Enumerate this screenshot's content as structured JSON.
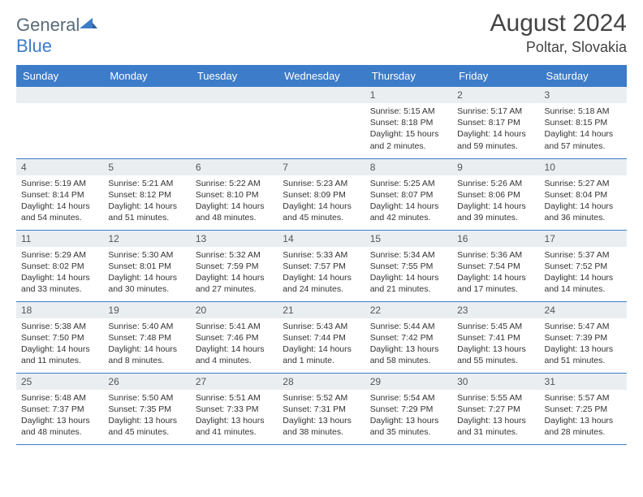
{
  "logo": {
    "left": "General",
    "right": "Blue"
  },
  "title": "August 2024",
  "location": "Poltar, Slovakia",
  "colors": {
    "header_bg": "#3d7cc9",
    "header_fg": "#ffffff",
    "daynum_bg": "#ebeef1",
    "border": "#3d7cc9",
    "logo_gray": "#5a6b7a",
    "logo_blue": "#3d7cc9"
  },
  "weekdays": [
    "Sunday",
    "Monday",
    "Tuesday",
    "Wednesday",
    "Thursday",
    "Friday",
    "Saturday"
  ],
  "weeks": [
    [
      null,
      null,
      null,
      null,
      {
        "day": "1",
        "sunrise": "5:15 AM",
        "sunset": "8:18 PM",
        "daylight": "15 hours and 2 minutes."
      },
      {
        "day": "2",
        "sunrise": "5:17 AM",
        "sunset": "8:17 PM",
        "daylight": "14 hours and 59 minutes."
      },
      {
        "day": "3",
        "sunrise": "5:18 AM",
        "sunset": "8:15 PM",
        "daylight": "14 hours and 57 minutes."
      }
    ],
    [
      {
        "day": "4",
        "sunrise": "5:19 AM",
        "sunset": "8:14 PM",
        "daylight": "14 hours and 54 minutes."
      },
      {
        "day": "5",
        "sunrise": "5:21 AM",
        "sunset": "8:12 PM",
        "daylight": "14 hours and 51 minutes."
      },
      {
        "day": "6",
        "sunrise": "5:22 AM",
        "sunset": "8:10 PM",
        "daylight": "14 hours and 48 minutes."
      },
      {
        "day": "7",
        "sunrise": "5:23 AM",
        "sunset": "8:09 PM",
        "daylight": "14 hours and 45 minutes."
      },
      {
        "day": "8",
        "sunrise": "5:25 AM",
        "sunset": "8:07 PM",
        "daylight": "14 hours and 42 minutes."
      },
      {
        "day": "9",
        "sunrise": "5:26 AM",
        "sunset": "8:06 PM",
        "daylight": "14 hours and 39 minutes."
      },
      {
        "day": "10",
        "sunrise": "5:27 AM",
        "sunset": "8:04 PM",
        "daylight": "14 hours and 36 minutes."
      }
    ],
    [
      {
        "day": "11",
        "sunrise": "5:29 AM",
        "sunset": "8:02 PM",
        "daylight": "14 hours and 33 minutes."
      },
      {
        "day": "12",
        "sunrise": "5:30 AM",
        "sunset": "8:01 PM",
        "daylight": "14 hours and 30 minutes."
      },
      {
        "day": "13",
        "sunrise": "5:32 AM",
        "sunset": "7:59 PM",
        "daylight": "14 hours and 27 minutes."
      },
      {
        "day": "14",
        "sunrise": "5:33 AM",
        "sunset": "7:57 PM",
        "daylight": "14 hours and 24 minutes."
      },
      {
        "day": "15",
        "sunrise": "5:34 AM",
        "sunset": "7:55 PM",
        "daylight": "14 hours and 21 minutes."
      },
      {
        "day": "16",
        "sunrise": "5:36 AM",
        "sunset": "7:54 PM",
        "daylight": "14 hours and 17 minutes."
      },
      {
        "day": "17",
        "sunrise": "5:37 AM",
        "sunset": "7:52 PM",
        "daylight": "14 hours and 14 minutes."
      }
    ],
    [
      {
        "day": "18",
        "sunrise": "5:38 AM",
        "sunset": "7:50 PM",
        "daylight": "14 hours and 11 minutes."
      },
      {
        "day": "19",
        "sunrise": "5:40 AM",
        "sunset": "7:48 PM",
        "daylight": "14 hours and 8 minutes."
      },
      {
        "day": "20",
        "sunrise": "5:41 AM",
        "sunset": "7:46 PM",
        "daylight": "14 hours and 4 minutes."
      },
      {
        "day": "21",
        "sunrise": "5:43 AM",
        "sunset": "7:44 PM",
        "daylight": "14 hours and 1 minute."
      },
      {
        "day": "22",
        "sunrise": "5:44 AM",
        "sunset": "7:42 PM",
        "daylight": "13 hours and 58 minutes."
      },
      {
        "day": "23",
        "sunrise": "5:45 AM",
        "sunset": "7:41 PM",
        "daylight": "13 hours and 55 minutes."
      },
      {
        "day": "24",
        "sunrise": "5:47 AM",
        "sunset": "7:39 PM",
        "daylight": "13 hours and 51 minutes."
      }
    ],
    [
      {
        "day": "25",
        "sunrise": "5:48 AM",
        "sunset": "7:37 PM",
        "daylight": "13 hours and 48 minutes."
      },
      {
        "day": "26",
        "sunrise": "5:50 AM",
        "sunset": "7:35 PM",
        "daylight": "13 hours and 45 minutes."
      },
      {
        "day": "27",
        "sunrise": "5:51 AM",
        "sunset": "7:33 PM",
        "daylight": "13 hours and 41 minutes."
      },
      {
        "day": "28",
        "sunrise": "5:52 AM",
        "sunset": "7:31 PM",
        "daylight": "13 hours and 38 minutes."
      },
      {
        "day": "29",
        "sunrise": "5:54 AM",
        "sunset": "7:29 PM",
        "daylight": "13 hours and 35 minutes."
      },
      {
        "day": "30",
        "sunrise": "5:55 AM",
        "sunset": "7:27 PM",
        "daylight": "13 hours and 31 minutes."
      },
      {
        "day": "31",
        "sunrise": "5:57 AM",
        "sunset": "7:25 PM",
        "daylight": "13 hours and 28 minutes."
      }
    ]
  ],
  "labels": {
    "sunrise": "Sunrise:",
    "sunset": "Sunset:",
    "daylight": "Daylight:"
  }
}
